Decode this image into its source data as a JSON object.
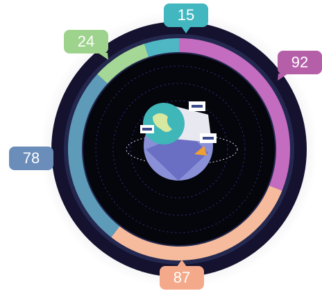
{
  "chart_data": {
    "type": "donut",
    "values": [
      92,
      87,
      78,
      24,
      15
    ],
    "colors": [
      "#c36cc0",
      "#f6bb9d",
      "#5d9bb9",
      "#a5d797",
      "#4fb6c4"
    ],
    "label_colors": [
      "#b45fa8",
      "#f4a98a",
      "#6a8dba",
      "#9dd38c",
      "#43b7c0"
    ]
  }
}
